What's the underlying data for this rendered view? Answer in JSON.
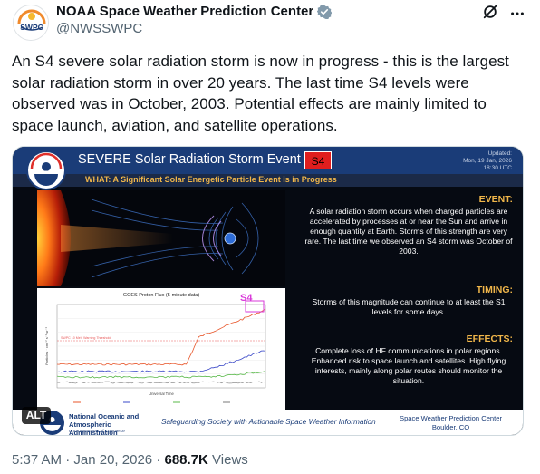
{
  "author": {
    "display_name": "NOAA Space Weather Prediction Center",
    "handle": "@NWSSWPC",
    "avatar_text": "SWPC"
  },
  "tweet": {
    "text": "An S4 severe solar radiation storm is now in progress - this is the largest solar radiation storm in over 20 years. The last time S4 levels were observed was in October, 2003. Potential effects are mainly limited to space launch, aviation, and satellite operations."
  },
  "media": {
    "title": "SEVERE Solar Radiation Storm Event",
    "badge": "S4",
    "updated_label": "Updated:",
    "updated_date": "Mon, 19 Jan, 2026",
    "updated_time": "18:30 UTC",
    "subtitle": "WHAT: A Significant Solar Energetic Particle Event is in Progress",
    "event_head": "EVENT:",
    "event_body": "A solar radiation storm occurs when charged particles are accelerated by processes at or near the Sun and arrive in enough quantity at Earth. Storms of this strength are very rare. The last time we observed an S4 storm was October of 2003.",
    "timing_head": "TIMING:",
    "timing_body": "Storms of this magnitude can continue to at least the S1 levels for some days.",
    "effects_head": "EFFECTS:",
    "effects_body": "Complete loss of HF communications in polar regions. Enhanced risk to space launch and satellites. High flying interests, mainly along polar routes should monitor the situation.",
    "footer_org_name": "National Oceanic and Atmospheric Administration",
    "footer_org_dept": "U.S. Department of Commerce",
    "footer_tagline": "Safeguarding Society with Actionable Space Weather Information",
    "footer_center": "Space Weather Prediction Center",
    "footer_city": "Boulder, CO",
    "alt_label": "ALT",
    "chart": {
      "title": "GOES Proton Flux (5-minute data)",
      "annotation": "S4",
      "threshold_label": "SWPC 10 MeV Warning Threshold",
      "xlabel": "Universal Time",
      "ylabel": "Particles · cm⁻² s⁻¹ sr⁻¹",
      "colors": {
        "p10": "#e8562a",
        "p50": "#3a48c8",
        "p100": "#58b848",
        "p500": "#7a7a7a",
        "threshold": "#e85a5a"
      }
    }
  },
  "meta": {
    "time": "5:37 AM",
    "separator": "·",
    "date": "Jan 20, 2026",
    "dot": "·",
    "views_count": "688.7K",
    "views_label": "Views"
  },
  "colors": {
    "text_primary": "#0f1419",
    "text_secondary": "#536471",
    "verified": "#829aab",
    "noaa_blue": "#1a3c78",
    "accent_orange": "#f0b64a",
    "badge_red": "#e01e1e"
  }
}
